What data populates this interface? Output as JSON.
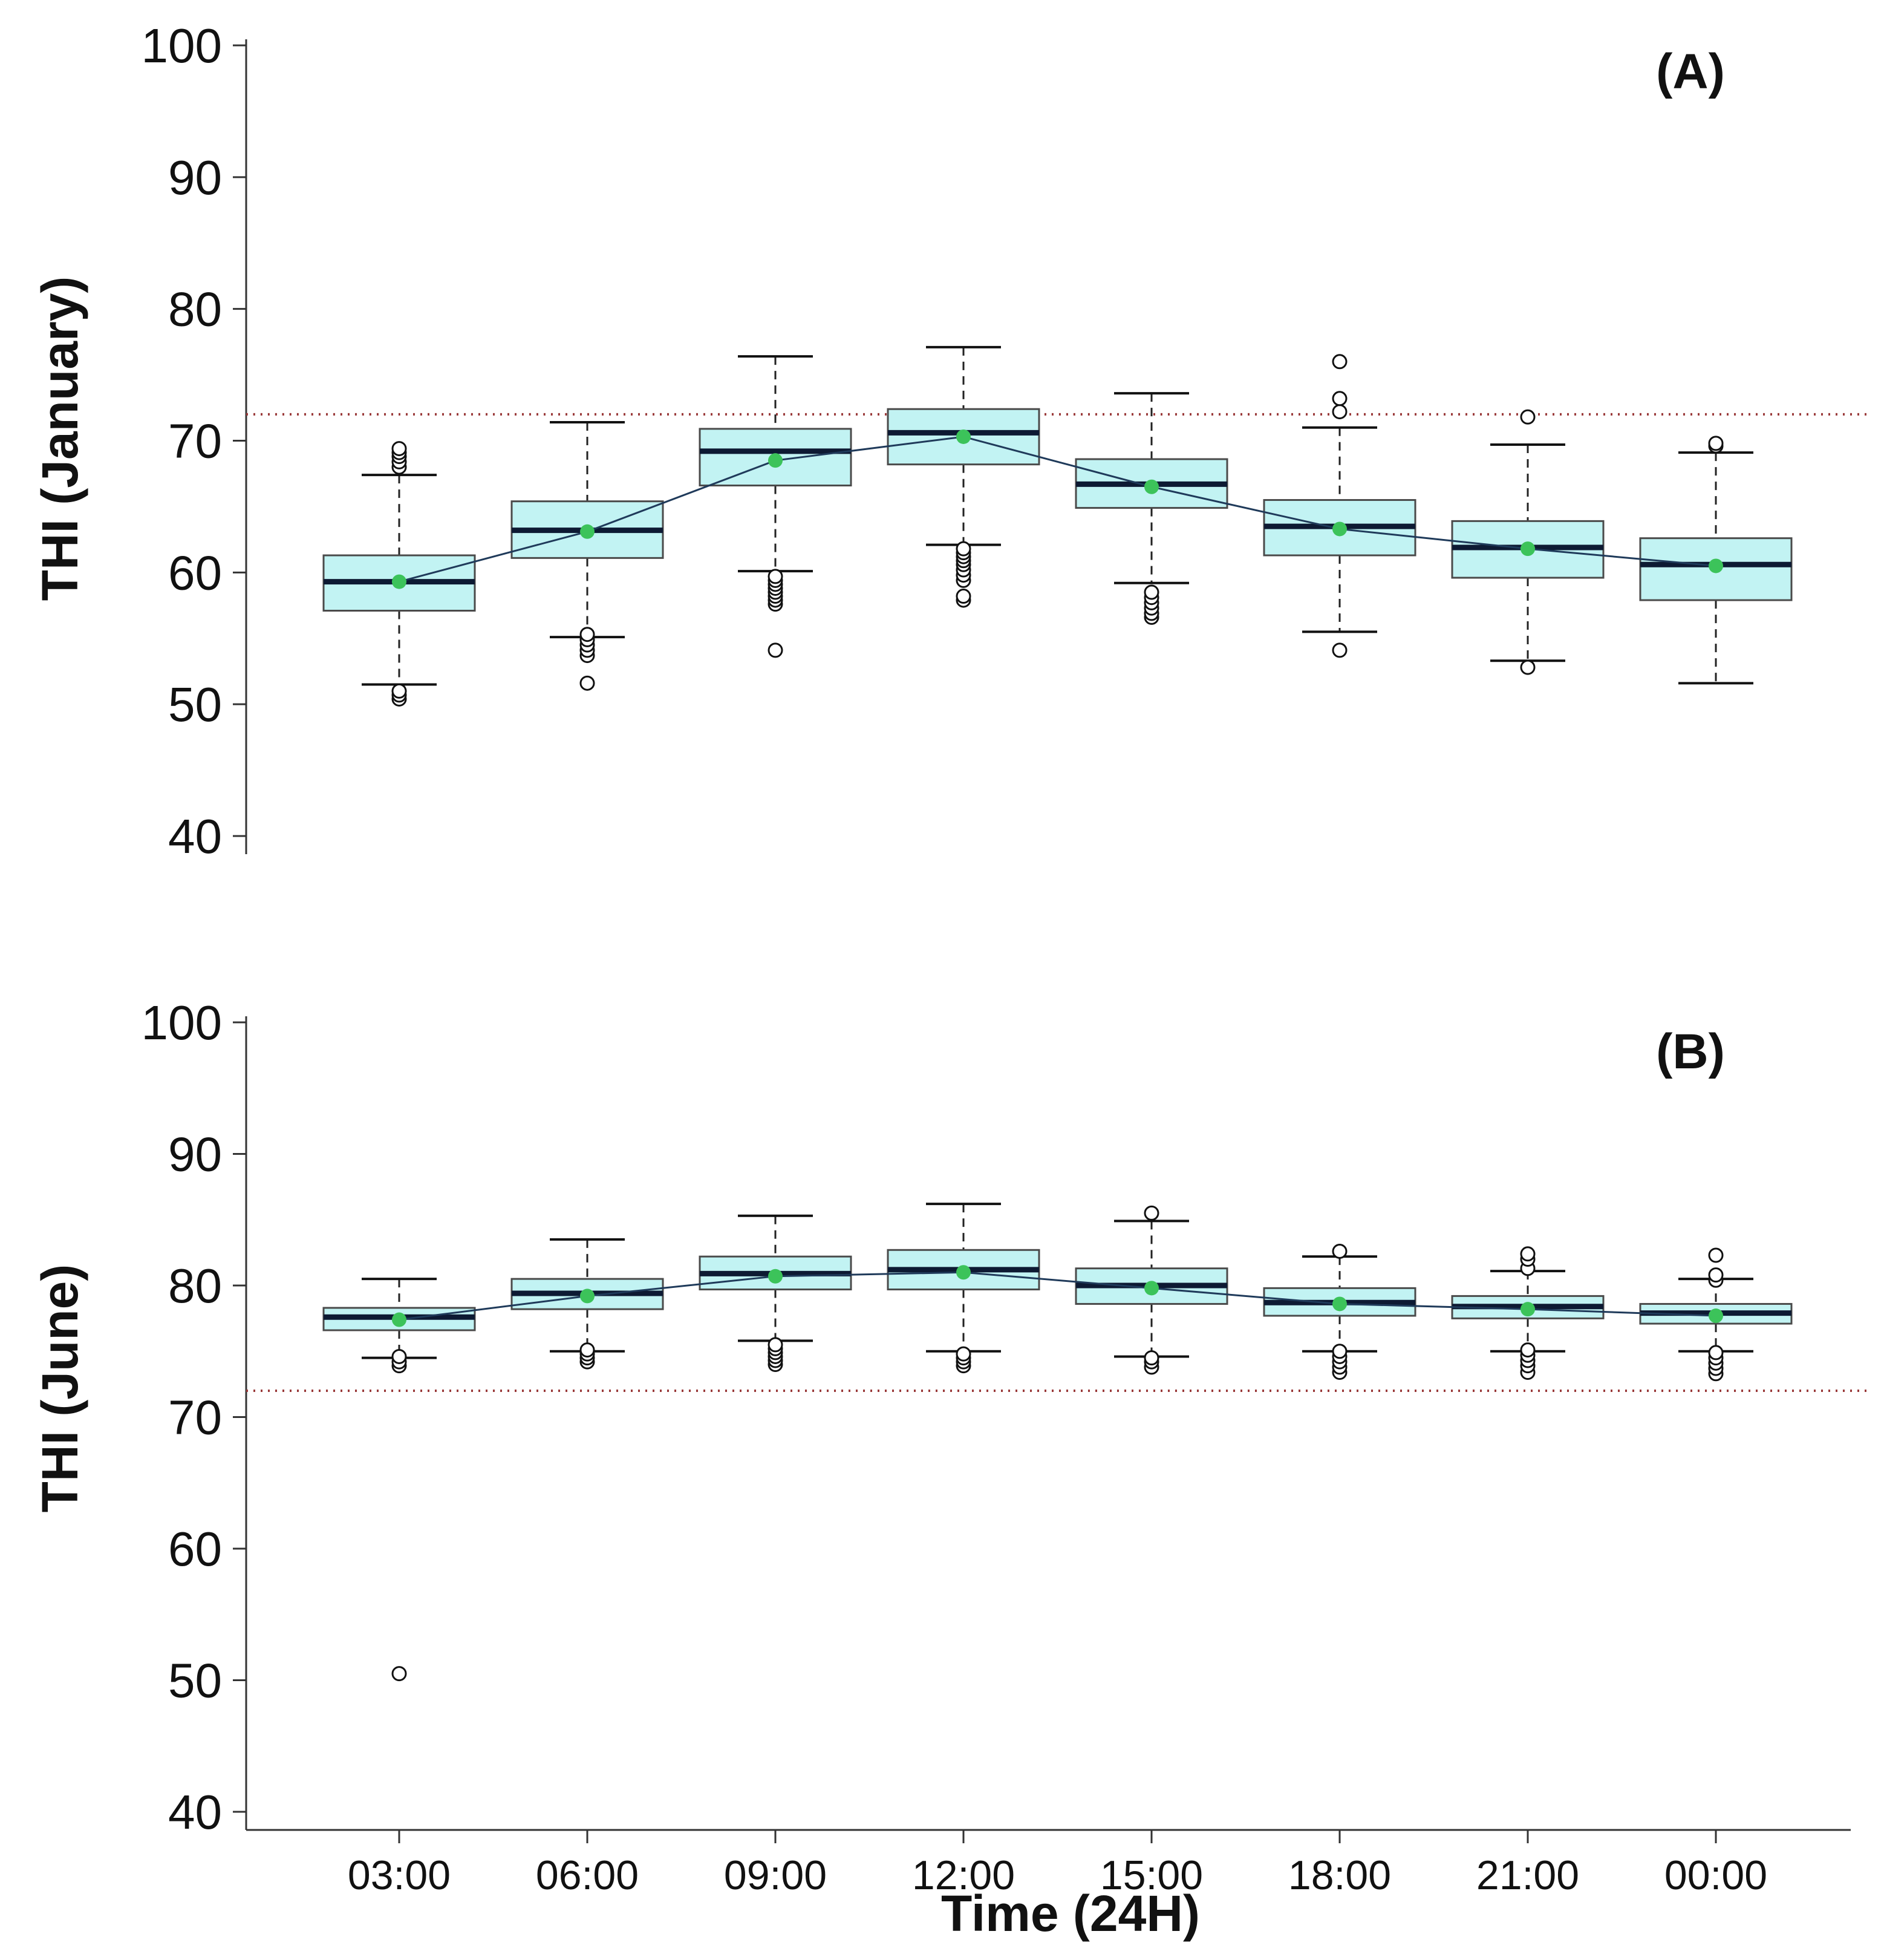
{
  "figure": {
    "xlabel": "Time (24H)"
  },
  "colors": {
    "box_fill": "#c2f3f3",
    "box_edge": "#4a4a4a",
    "median": "#0d1a33",
    "mean_point": "#3cc35a",
    "mean_line": "#1f3a5a",
    "threshold": "#9a3a3a",
    "axis": "#333333",
    "text": "#111111"
  },
  "chart_data": [
    {
      "type": "boxplot",
      "panel_label": "(A)",
      "ylabel": "THI (January)",
      "ylim": [
        40,
        100
      ],
      "yticks": [
        "40",
        "50",
        "60",
        "70",
        "80",
        "90",
        "100"
      ],
      "categories": [
        "03:00",
        "06:00",
        "09:00",
        "12:00",
        "15:00",
        "18:00",
        "21:00",
        "00:00"
      ],
      "show_x_axis": false,
      "threshold": 72,
      "boxes": [
        {
          "whisker_low": 51.5,
          "q1": 57.1,
          "median": 59.3,
          "q3": 61.3,
          "whisker_high": 67.4,
          "mean": 59.3,
          "outliers": [
            50.4,
            50.7,
            51.0,
            68.0,
            68.4,
            68.8,
            69.1,
            69.4
          ]
        },
        {
          "whisker_low": 55.1,
          "q1": 61.1,
          "median": 63.2,
          "q3": 65.4,
          "whisker_high": 71.4,
          "mean": 63.1,
          "outliers": [
            51.6,
            53.7,
            54.1,
            54.5,
            54.9,
            55.3
          ]
        },
        {
          "whisker_low": 60.1,
          "q1": 66.6,
          "median": 69.2,
          "q3": 70.9,
          "whisker_high": 76.4,
          "mean": 68.5,
          "outliers": [
            54.1,
            57.6,
            57.9,
            58.2,
            58.5,
            58.8,
            59.1,
            59.4,
            59.7
          ]
        },
        {
          "whisker_low": 62.1,
          "q1": 68.2,
          "median": 70.6,
          "q3": 72.4,
          "whisker_high": 77.1,
          "mean": 70.3,
          "outliers": [
            57.9,
            58.2,
            59.4,
            59.8,
            60.2,
            60.6,
            60.9,
            61.2,
            61.5,
            61.8
          ]
        },
        {
          "whisker_low": 59.2,
          "q1": 64.9,
          "median": 66.7,
          "q3": 68.6,
          "whisker_high": 73.6,
          "mean": 66.5,
          "outliers": [
            56.6,
            56.9,
            57.3,
            57.7,
            58.1,
            58.5
          ]
        },
        {
          "whisker_low": 55.5,
          "q1": 61.3,
          "median": 63.5,
          "q3": 65.5,
          "whisker_high": 71.0,
          "mean": 63.3,
          "outliers": [
            54.1,
            72.2,
            73.2,
            76.0
          ]
        },
        {
          "whisker_low": 53.3,
          "q1": 59.6,
          "median": 61.9,
          "q3": 63.9,
          "whisker_high": 69.7,
          "mean": 61.8,
          "outliers": [
            52.8,
            71.8
          ]
        },
        {
          "whisker_low": 51.6,
          "q1": 57.9,
          "median": 60.6,
          "q3": 62.6,
          "whisker_high": 69.1,
          "mean": 60.5,
          "outliers": [
            69.6,
            69.8
          ]
        }
      ]
    },
    {
      "type": "boxplot",
      "panel_label": "(B)",
      "ylabel": "THI (June)",
      "ylim": [
        40,
        100
      ],
      "yticks": [
        "40",
        "50",
        "60",
        "70",
        "80",
        "90",
        "100"
      ],
      "categories": [
        "03:00",
        "06:00",
        "09:00",
        "12:00",
        "15:00",
        "18:00",
        "21:00",
        "00:00"
      ],
      "show_x_axis": true,
      "threshold": 72,
      "boxes": [
        {
          "whisker_low": 74.5,
          "q1": 76.6,
          "median": 77.6,
          "q3": 78.3,
          "whisker_high": 80.5,
          "mean": 77.4,
          "outliers": [
            50.5,
            73.9,
            74.2,
            74.6
          ]
        },
        {
          "whisker_low": 75.0,
          "q1": 78.2,
          "median": 79.4,
          "q3": 80.5,
          "whisker_high": 83.5,
          "mean": 79.2,
          "outliers": [
            74.2,
            74.5,
            74.8,
            75.1
          ]
        },
        {
          "whisker_low": 75.8,
          "q1": 79.7,
          "median": 80.9,
          "q3": 82.2,
          "whisker_high": 85.3,
          "mean": 80.7,
          "outliers": [
            74.0,
            74.3,
            74.6,
            74.9,
            75.2,
            75.5
          ]
        },
        {
          "whisker_low": 75.0,
          "q1": 79.7,
          "median": 81.2,
          "q3": 82.7,
          "whisker_high": 86.2,
          "mean": 81.0,
          "outliers": [
            73.9,
            74.2,
            74.5,
            74.8
          ]
        },
        {
          "whisker_low": 74.6,
          "q1": 78.6,
          "median": 80.0,
          "q3": 81.3,
          "whisker_high": 84.9,
          "mean": 79.8,
          "outliers": [
            73.8,
            74.2,
            74.5,
            85.5
          ]
        },
        {
          "whisker_low": 75.0,
          "q1": 77.7,
          "median": 78.7,
          "q3": 79.8,
          "whisker_high": 82.2,
          "mean": 78.6,
          "outliers": [
            73.4,
            73.8,
            74.2,
            74.6,
            75.0,
            82.6
          ]
        },
        {
          "whisker_low": 75.0,
          "q1": 77.5,
          "median": 78.4,
          "q3": 79.2,
          "whisker_high": 81.1,
          "mean": 78.2,
          "outliers": [
            73.4,
            73.9,
            74.3,
            74.7,
            75.1,
            81.3,
            82.0,
            82.4
          ]
        },
        {
          "whisker_low": 75.0,
          "q1": 77.1,
          "median": 77.9,
          "q3": 78.6,
          "whisker_high": 80.5,
          "mean": 77.7,
          "outliers": [
            73.3,
            73.7,
            74.1,
            74.5,
            74.9,
            80.4,
            80.8,
            82.3
          ]
        }
      ]
    }
  ]
}
